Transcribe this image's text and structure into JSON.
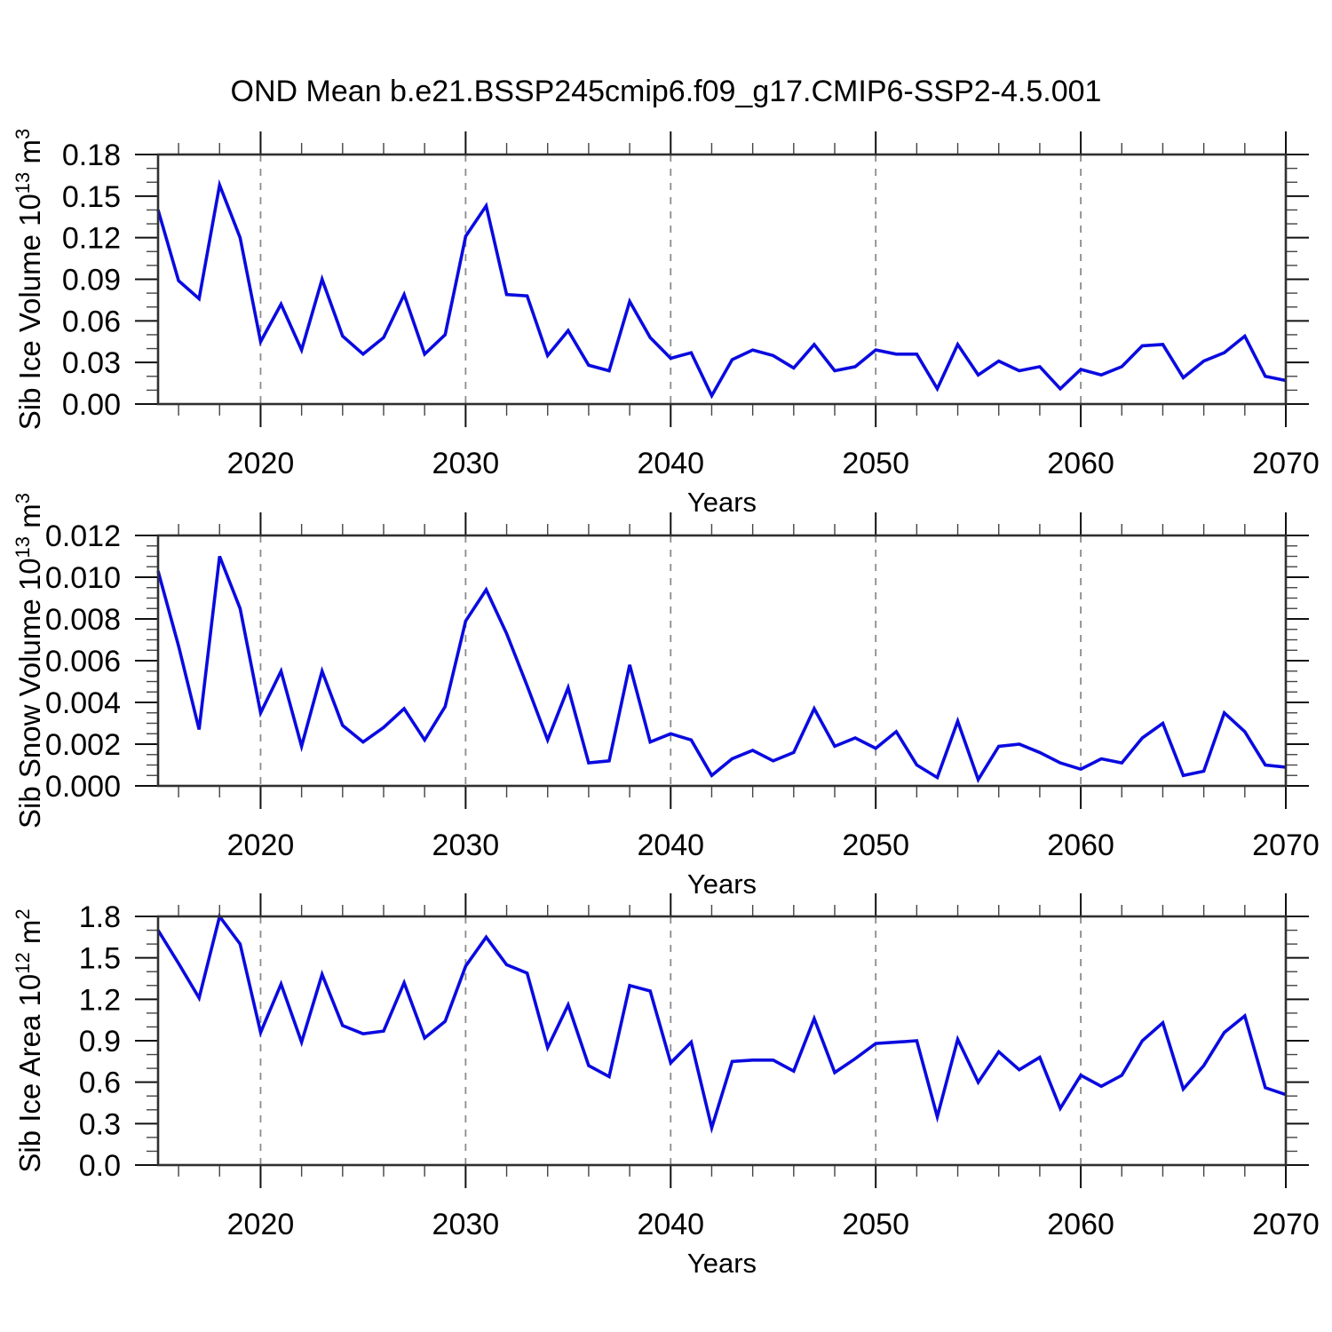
{
  "title": "OND Mean b.e21.BSSP245cmip6.f09_g17.CMIP6-SSP2-4.5.001",
  "colors": {
    "line": "#0a0ae0",
    "grid": "#8c8c8c",
    "border": "#303030",
    "tick_major": "#111111",
    "tick_minor": "#444444",
    "text": "#000000",
    "background": "#ffffff"
  },
  "chart_data": {
    "type": "line",
    "layout": "three stacked panels, shared x axis style, vertical dashed gridlines at decades, ticks outward on all four sides",
    "x_label": "Years",
    "x_range": [
      2015,
      2070
    ],
    "x_major_ticks": [
      2020,
      2030,
      2040,
      2050,
      2060,
      2070
    ],
    "x_minor_step": 2,
    "x_years": [
      2015,
      2016,
      2017,
      2018,
      2019,
      2020,
      2021,
      2022,
      2023,
      2024,
      2025,
      2026,
      2027,
      2028,
      2029,
      2030,
      2031,
      2032,
      2033,
      2034,
      2035,
      2036,
      2037,
      2038,
      2039,
      2040,
      2041,
      2042,
      2043,
      2044,
      2045,
      2046,
      2047,
      2048,
      2049,
      2050,
      2051,
      2052,
      2053,
      2054,
      2055,
      2056,
      2057,
      2058,
      2059,
      2060,
      2061,
      2062,
      2063,
      2064,
      2065,
      2066,
      2067,
      2068,
      2069,
      2070
    ],
    "panels": [
      {
        "id": "sib-ice-volume",
        "ylabel": "Sib Ice Volume 10^13 m^3",
        "ylabel_segments": [
          {
            "t": "Sib Ice Volume 10"
          },
          {
            "t": "13",
            "sup": true
          },
          {
            "t": " m"
          },
          {
            "t": "3",
            "sup": true
          }
        ],
        "ylim": [
          0,
          0.18
        ],
        "y_major_step": 0.03,
        "y_minor_step": 0.01,
        "y_tick_labels": [
          "0.00",
          "0.03",
          "0.06",
          "0.09",
          "0.12",
          "0.15",
          "0.18"
        ],
        "values": [
          0.14,
          0.089,
          0.076,
          0.158,
          0.12,
          0.045,
          0.072,
          0.039,
          0.09,
          0.049,
          0.036,
          0.048,
          0.079,
          0.036,
          0.05,
          0.121,
          0.143,
          0.079,
          0.078,
          0.035,
          0.053,
          0.028,
          0.024,
          0.074,
          0.048,
          0.033,
          0.037,
          0.006,
          0.032,
          0.039,
          0.035,
          0.026,
          0.043,
          0.024,
          0.027,
          0.039,
          0.036,
          0.036,
          0.011,
          0.043,
          0.021,
          0.031,
          0.024,
          0.027,
          0.011,
          0.025,
          0.021,
          0.027,
          0.042,
          0.043,
          0.019,
          0.031,
          0.037,
          0.049,
          0.02,
          0.017
        ]
      },
      {
        "id": "sib-snow-volume",
        "ylabel": "Sib Snow Volume 10^13 m^3",
        "ylabel_segments": [
          {
            "t": "Sib Snow Volume 10"
          },
          {
            "t": "13",
            "sup": true
          },
          {
            "t": " m"
          },
          {
            "t": "3",
            "sup": true
          }
        ],
        "ylim": [
          0,
          0.012
        ],
        "y_major_step": 0.002,
        "y_minor_step": 0.0005,
        "y_tick_labels": [
          "0.000",
          "0.002",
          "0.004",
          "0.006",
          "0.008",
          "0.010",
          "0.012"
        ],
        "values": [
          0.0103,
          0.0067,
          0.0027,
          0.011,
          0.0085,
          0.0035,
          0.0055,
          0.0019,
          0.0055,
          0.0029,
          0.0021,
          0.0028,
          0.0037,
          0.0022,
          0.0038,
          0.0079,
          0.0094,
          0.0073,
          0.0048,
          0.0022,
          0.0047,
          0.0011,
          0.0012,
          0.0058,
          0.0021,
          0.0025,
          0.0022,
          0.0005,
          0.0013,
          0.0017,
          0.0012,
          0.0016,
          0.0037,
          0.0019,
          0.0023,
          0.0018,
          0.0026,
          0.001,
          0.0004,
          0.0031,
          0.0003,
          0.0019,
          0.002,
          0.0016,
          0.0011,
          0.0008,
          0.0013,
          0.0011,
          0.0023,
          0.003,
          0.0005,
          0.0007,
          0.0035,
          0.0026,
          0.001,
          0.0009
        ]
      },
      {
        "id": "sib-ice-area",
        "ylabel": "Sib Ice Area 10^12 m^2",
        "ylabel_segments": [
          {
            "t": "Sib Ice Area 10"
          },
          {
            "t": "12",
            "sup": true
          },
          {
            "t": " m"
          },
          {
            "t": "2",
            "sup": true
          }
        ],
        "ylim": [
          0,
          1.8
        ],
        "y_major_step": 0.3,
        "y_minor_step": 0.1,
        "y_tick_labels": [
          "0.0",
          "0.3",
          "0.6",
          "0.9",
          "1.2",
          "1.5",
          "1.8"
        ],
        "values": [
          1.7,
          1.46,
          1.21,
          1.8,
          1.6,
          0.96,
          1.31,
          0.89,
          1.38,
          1.01,
          0.95,
          0.97,
          1.32,
          0.92,
          1.04,
          1.44,
          1.65,
          1.45,
          1.39,
          0.85,
          1.16,
          0.72,
          0.64,
          1.3,
          1.26,
          0.74,
          0.89,
          0.27,
          0.75,
          0.76,
          0.76,
          0.68,
          1.06,
          0.67,
          0.77,
          0.88,
          0.89,
          0.9,
          0.35,
          0.91,
          0.6,
          0.82,
          0.69,
          0.78,
          0.41,
          0.65,
          0.57,
          0.65,
          0.9,
          1.03,
          0.55,
          0.72,
          0.96,
          1.08,
          0.56,
          0.51
        ]
      }
    ]
  }
}
